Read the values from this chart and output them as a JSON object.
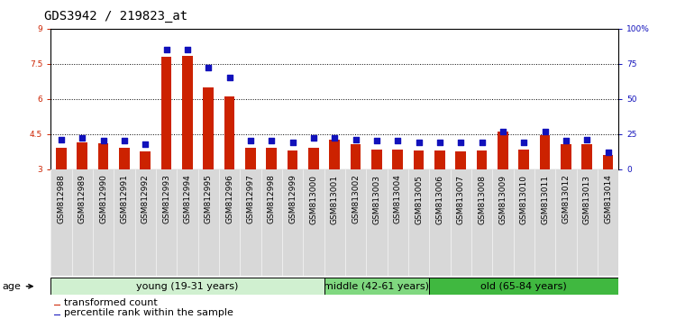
{
  "title": "GDS3942 / 219823_at",
  "samples": [
    "GSM812988",
    "GSM812989",
    "GSM812990",
    "GSM812991",
    "GSM812992",
    "GSM812993",
    "GSM812994",
    "GSM812995",
    "GSM812996",
    "GSM812997",
    "GSM812998",
    "GSM812999",
    "GSM813000",
    "GSM813001",
    "GSM813002",
    "GSM813003",
    "GSM813004",
    "GSM813005",
    "GSM813006",
    "GSM813007",
    "GSM813008",
    "GSM813009",
    "GSM813010",
    "GSM813011",
    "GSM813012",
    "GSM813013",
    "GSM813014"
  ],
  "red_values": [
    3.9,
    4.15,
    4.1,
    3.9,
    3.75,
    7.8,
    7.85,
    6.5,
    6.1,
    3.9,
    3.9,
    3.8,
    3.9,
    4.25,
    4.05,
    3.85,
    3.85,
    3.8,
    3.8,
    3.75,
    3.8,
    4.6,
    3.85,
    4.45,
    4.05,
    4.05,
    3.6
  ],
  "blue_values": [
    21,
    22,
    20,
    20,
    18,
    85,
    85,
    72,
    65,
    20,
    20,
    19,
    22,
    22,
    21,
    20,
    20,
    19,
    19,
    19,
    19,
    27,
    19,
    27,
    20,
    21,
    12
  ],
  "groups": [
    {
      "label": "young (19-31 years)",
      "start": 0,
      "end": 13,
      "color": "#d0f0d0"
    },
    {
      "label": "middle (42-61 years)",
      "start": 13,
      "end": 18,
      "color": "#80d880"
    },
    {
      "label": "old (65-84 years)",
      "start": 18,
      "end": 27,
      "color": "#40b840"
    }
  ],
  "ymin": 3,
  "ymax": 9,
  "yticks_left": [
    3,
    4.5,
    6,
    7.5,
    9
  ],
  "ytick_labels_left": [
    "3",
    "4.5",
    "6",
    "7.5",
    "9"
  ],
  "yticks_right": [
    0,
    25,
    50,
    75,
    100
  ],
  "ytick_labels_right": [
    "0",
    "25",
    "50",
    "75",
    "100%"
  ],
  "red_color": "#cc2200",
  "blue_color": "#1111bb",
  "bar_width": 0.5,
  "title_fontsize": 10,
  "tick_fontsize": 6.5,
  "group_fontsize": 8,
  "legend_fontsize": 8
}
